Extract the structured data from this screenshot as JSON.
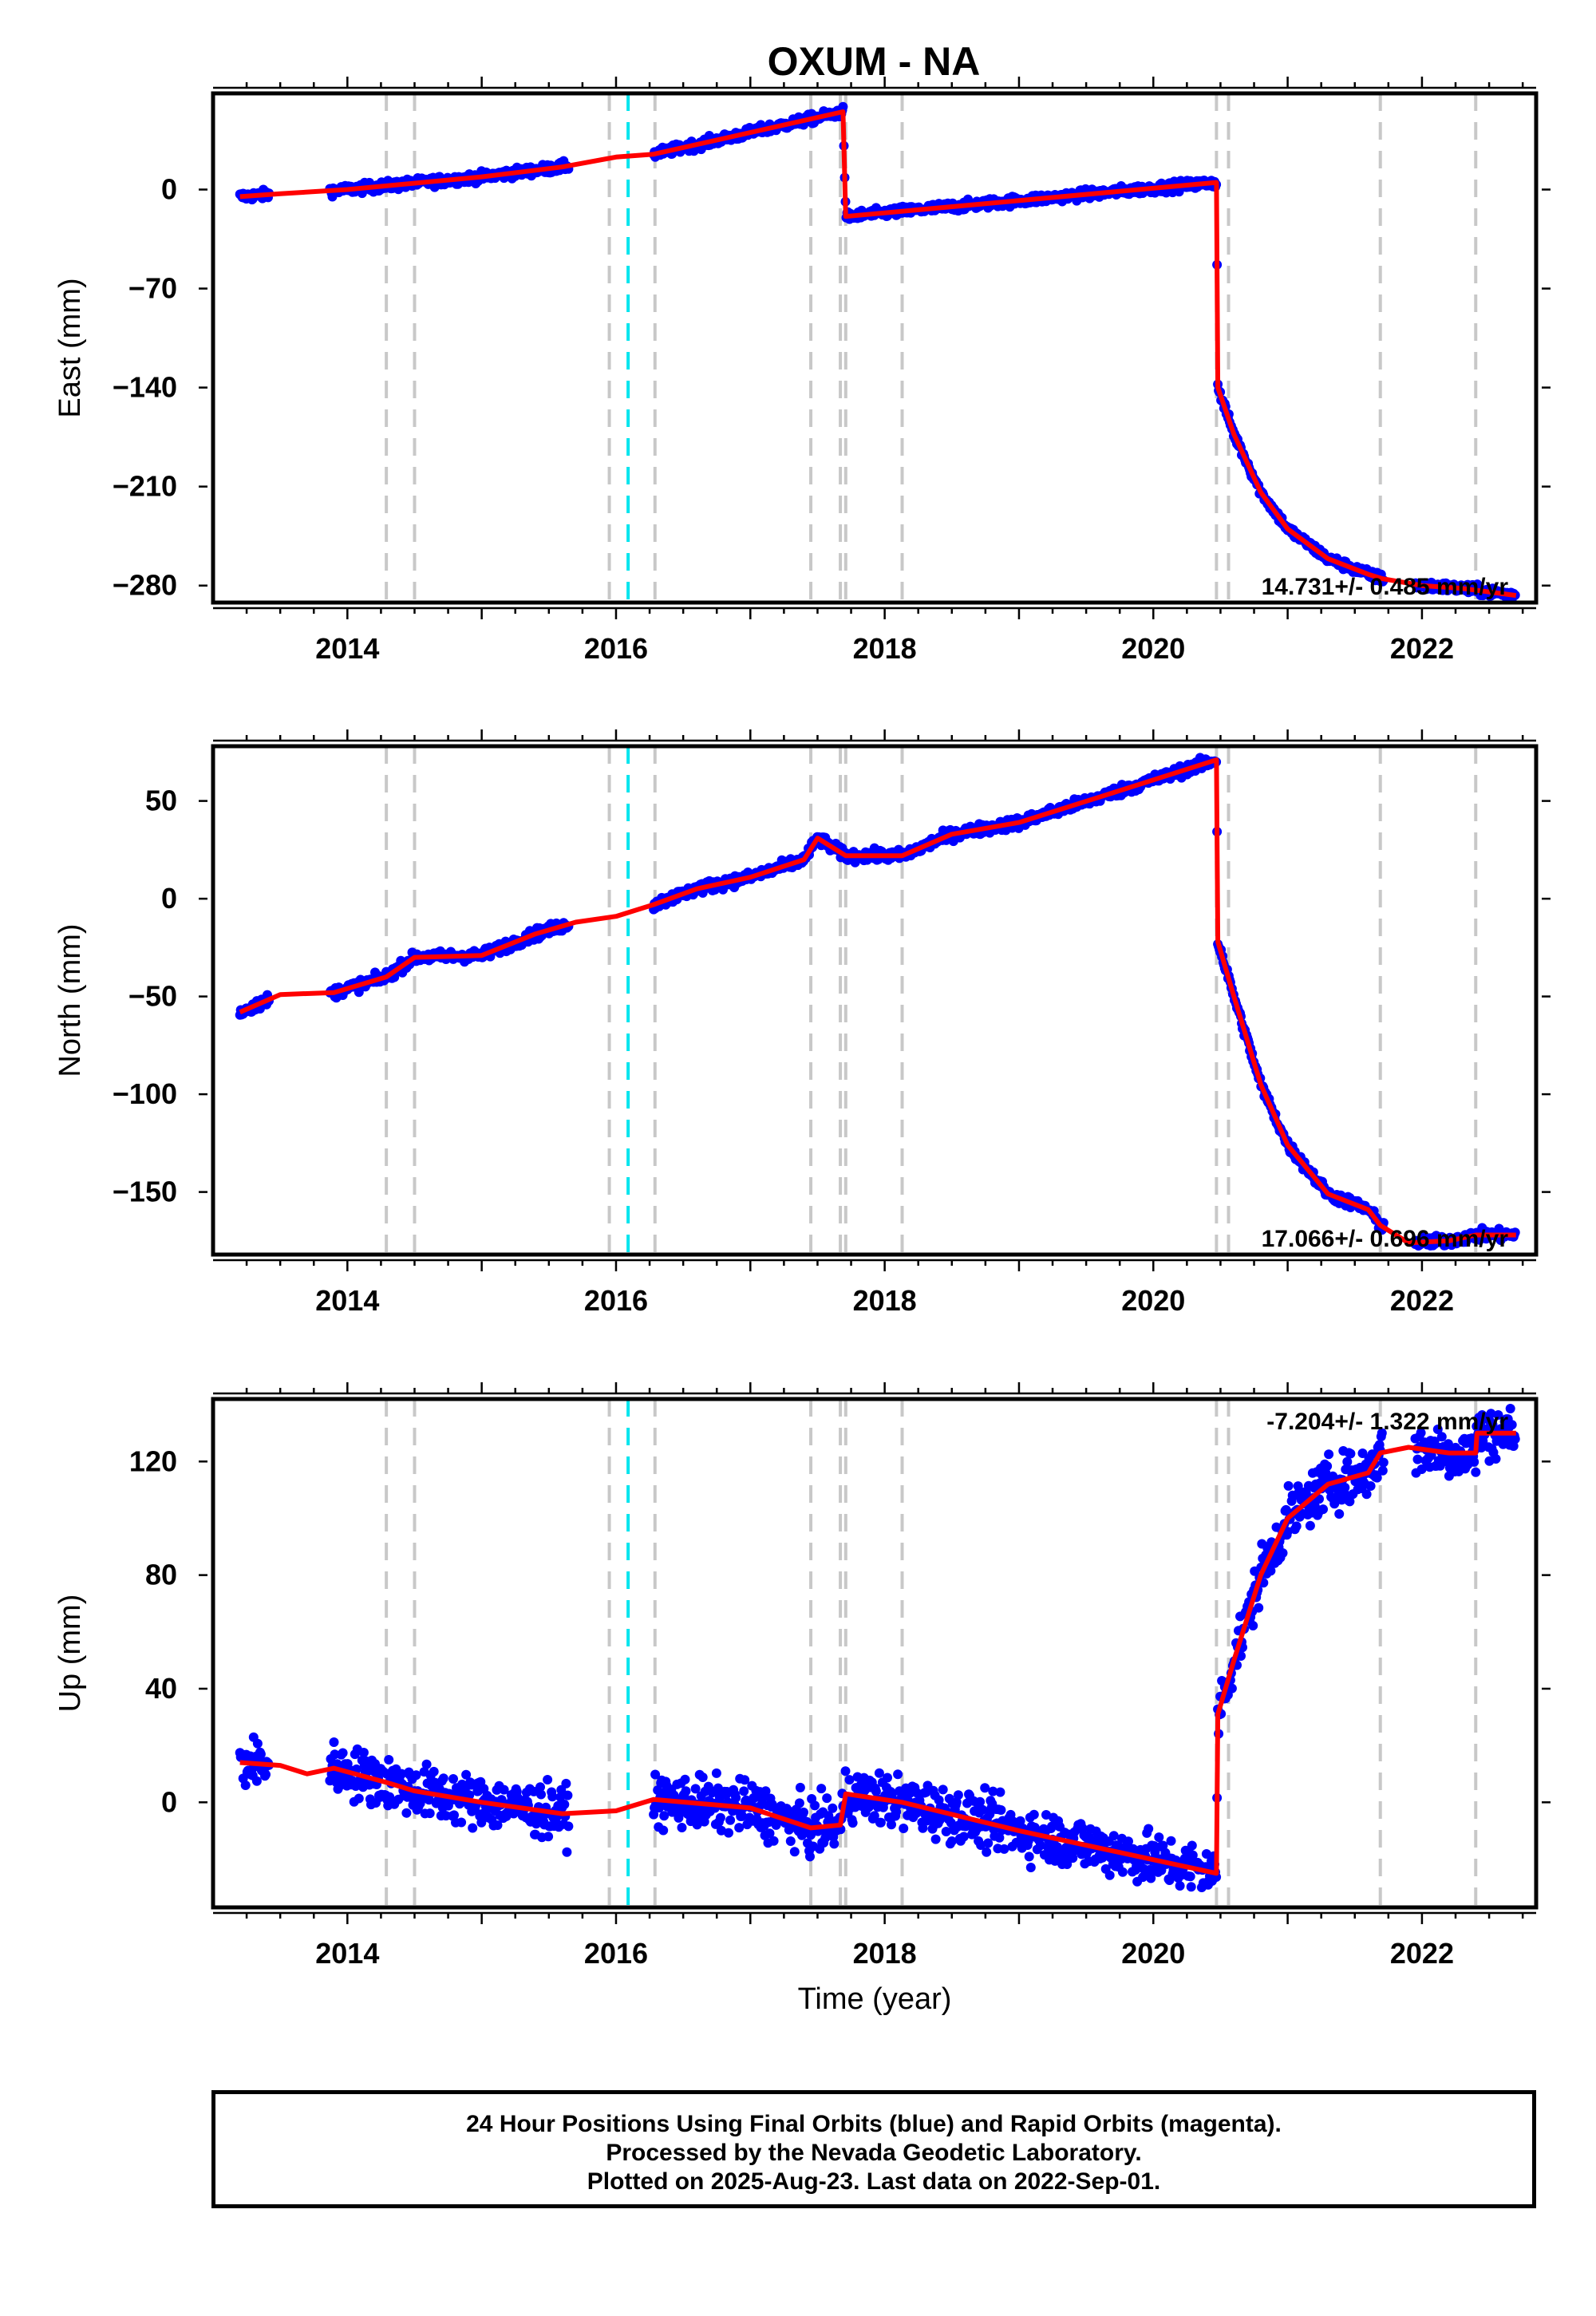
{
  "chart_data": {
    "type": "scatter",
    "title": "OXUM - NA",
    "xlabel": "Time (year)",
    "xlim": [
      2013.0,
      2022.85
    ],
    "x_ticks": [
      "2014",
      "2016",
      "2018",
      "2020",
      "2022"
    ],
    "grid": false,
    "colors": {
      "observed": "#0000ff",
      "model": "#ff0000",
      "step_gray": "#c8c8c8",
      "step_cyan": "#00e5ee"
    },
    "step_lines": [
      2014.29,
      2014.5,
      2015.95,
      2016.29,
      2017.45,
      2017.67,
      2017.71,
      2018.13,
      2020.47,
      2020.56,
      2021.69,
      2022.4
    ],
    "cyan_lines": [
      2016.09
    ],
    "panels": [
      {
        "id": "east",
        "ylabel": "East (mm)",
        "ylim": [
          -292,
          68
        ],
        "y_ticks": [
          0,
          -70,
          -140,
          -210,
          -280
        ],
        "velocity_label": "14.731+/- 0.485 mm/yr",
        "data_ranges": [
          [
            2013.2,
            2013.42
          ],
          [
            2013.87,
            2015.65
          ],
          [
            2016.28,
            2017.72
          ],
          [
            2017.72,
            2020.52
          ],
          [
            2020.52,
            2021.72
          ],
          [
            2021.95,
            2022.7
          ]
        ],
        "point_spread": 2.4,
        "model": [
          [
            2013.2,
            -5
          ],
          [
            2013.5,
            -3
          ],
          [
            2014.0,
            0
          ],
          [
            2015.0,
            9
          ],
          [
            2015.6,
            16
          ],
          [
            2016.0,
            23
          ],
          [
            2016.28,
            25
          ],
          [
            2017.69,
            55
          ],
          [
            2017.71,
            -19
          ],
          [
            2020.47,
            5
          ],
          [
            2020.48,
            -140
          ],
          [
            2020.6,
            -173
          ],
          [
            2020.8,
            -214
          ],
          [
            2021.0,
            -240
          ],
          [
            2021.3,
            -261
          ],
          [
            2021.6,
            -272
          ],
          [
            2021.7,
            -275
          ],
          [
            2022.0,
            -280
          ],
          [
            2022.3,
            -282
          ],
          [
            2022.7,
            -287
          ]
        ],
        "series": [
          {
            "name": "",
            "color": "#0000ff"
          }
        ]
      },
      {
        "id": "north",
        "ylabel": "North (mm)",
        "ylim": [
          -182,
          78
        ],
        "y_ticks": [
          50,
          0,
          -50,
          -100,
          -150
        ],
        "velocity_label": "17.066+/- 0.696 mm/yr",
        "data_ranges": [
          [
            2013.2,
            2013.42
          ],
          [
            2013.87,
            2015.65
          ],
          [
            2016.28,
            2017.72
          ],
          [
            2017.72,
            2020.52
          ],
          [
            2020.52,
            2021.72
          ],
          [
            2021.95,
            2022.7
          ]
        ],
        "point_spread": 2.0,
        "model": [
          [
            2013.2,
            -58
          ],
          [
            2013.5,
            -49
          ],
          [
            2013.9,
            -48
          ],
          [
            2014.29,
            -40
          ],
          [
            2014.5,
            -30
          ],
          [
            2015.0,
            -29
          ],
          [
            2015.4,
            -18
          ],
          [
            2015.7,
            -12
          ],
          [
            2016.0,
            -9
          ],
          [
            2016.28,
            -3
          ],
          [
            2016.6,
            5
          ],
          [
            2017.0,
            11
          ],
          [
            2017.4,
            20
          ],
          [
            2017.5,
            31
          ],
          [
            2017.71,
            22
          ],
          [
            2018.13,
            22
          ],
          [
            2018.5,
            33
          ],
          [
            2019.0,
            39
          ],
          [
            2019.6,
            52
          ],
          [
            2020.47,
            71
          ],
          [
            2020.48,
            -22
          ],
          [
            2020.6,
            -50
          ],
          [
            2020.8,
            -95
          ],
          [
            2021.0,
            -126
          ],
          [
            2021.3,
            -151
          ],
          [
            2021.6,
            -159
          ],
          [
            2021.69,
            -167
          ],
          [
            2021.9,
            -176
          ],
          [
            2022.2,
            -175
          ],
          [
            2022.4,
            -172
          ],
          [
            2022.7,
            -172
          ]
        ],
        "series": [
          {
            "name": "",
            "color": "#0000ff"
          }
        ]
      },
      {
        "id": "up",
        "ylabel": "Up (mm)",
        "ylim": [
          -37,
          142
        ],
        "y_ticks": [
          120,
          80,
          40,
          0
        ],
        "velocity_label": "-7.204+/- 1.322 mm/yr",
        "data_ranges": [
          [
            2013.2,
            2013.42
          ],
          [
            2013.87,
            2015.65
          ],
          [
            2016.28,
            2017.72
          ],
          [
            2017.72,
            2020.52
          ],
          [
            2020.52,
            2021.72
          ],
          [
            2021.95,
            2022.7
          ]
        ],
        "point_spread": 6.5,
        "model": [
          [
            2013.2,
            14
          ],
          [
            2013.5,
            13
          ],
          [
            2013.7,
            10
          ],
          [
            2013.9,
            12
          ],
          [
            2014.29,
            7
          ],
          [
            2014.5,
            4
          ],
          [
            2015.0,
            0
          ],
          [
            2015.6,
            -4
          ],
          [
            2016.0,
            -3
          ],
          [
            2016.28,
            1
          ],
          [
            2017.0,
            -2
          ],
          [
            2017.45,
            -9
          ],
          [
            2017.67,
            -8
          ],
          [
            2017.71,
            3
          ],
          [
            2018.13,
            0
          ],
          [
            2019.0,
            -10
          ],
          [
            2020.47,
            -25
          ],
          [
            2020.48,
            31
          ],
          [
            2020.6,
            50
          ],
          [
            2020.8,
            80
          ],
          [
            2021.0,
            100
          ],
          [
            2021.3,
            112
          ],
          [
            2021.6,
            116
          ],
          [
            2021.69,
            123
          ],
          [
            2021.9,
            125
          ],
          [
            2022.2,
            123
          ],
          [
            2022.4,
            123
          ],
          [
            2022.41,
            130
          ],
          [
            2022.7,
            130
          ]
        ],
        "series": [
          {
            "name": "",
            "color": "#0000ff"
          }
        ]
      }
    ]
  },
  "footer": {
    "line1": "24 Hour Positions Using Final Orbits (blue) and Rapid Orbits (magenta).",
    "line2": "Processed by the Nevada Geodetic Laboratory.",
    "line3": "Plotted on 2025-Aug-23. Last data on 2022-Sep-01."
  }
}
